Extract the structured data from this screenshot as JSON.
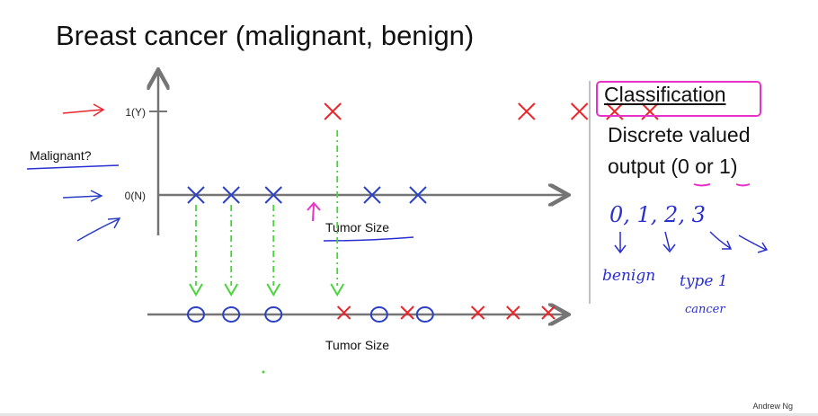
{
  "slide": {
    "title": "Breast cancer (malignant, benign)",
    "side": {
      "heading": "Classification",
      "line1": "Discrete valued",
      "line2_prefix": "output (",
      "line2_zero": "0",
      "line2_mid": " or ",
      "line2_one": "1",
      "line2_suffix": ")",
      "handwriting": {
        "classes": "0, 1, 2, 3",
        "label_benign": "benign",
        "label_type1": "type 1",
        "label_cancer": "cancer"
      }
    },
    "footer": "Andrew Ng"
  },
  "chart_data": [
    {
      "type": "scatter",
      "ylabel": "Malignant?",
      "xlabel": "Tumor Size",
      "y_ticks": [
        "1(Y)",
        "0(N)"
      ],
      "series": [
        {
          "marker": "x",
          "color": "#e8262b",
          "y": 1,
          "x": [
            1,
            6.5,
            8,
            9,
            10
          ]
        },
        {
          "marker": "x",
          "color": "#2b3fc7",
          "y": 0,
          "x": [
            0,
            1,
            2.2,
            5,
            6.3
          ]
        }
      ]
    },
    {
      "type": "scatter",
      "xlabel": "Tumor Size",
      "series": [
        {
          "marker": "o",
          "color": "#2b3fc7",
          "x": [
            0,
            1,
            2.2,
            5.2,
            6.5
          ]
        },
        {
          "marker": "x",
          "color": "#e8262b",
          "x": [
            4.2,
            6,
            8,
            9,
            10
          ]
        }
      ]
    }
  ],
  "colors": {
    "axis": "#757575",
    "malignant": "#e8262b",
    "benign": "#2b3fc7",
    "guide": "#49d43a",
    "pen_pink": "#e831c8",
    "pen_blue": "#2a2fd0"
  }
}
